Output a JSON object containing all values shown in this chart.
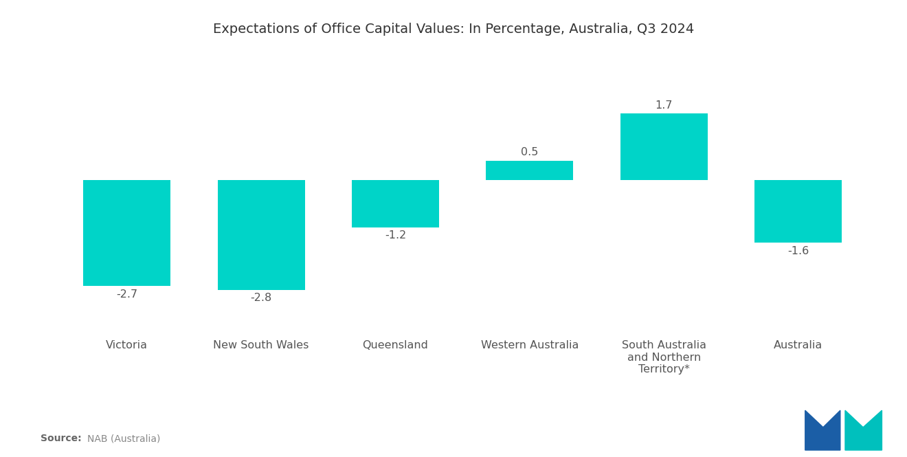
{
  "title": "Expectations of Office Capital Values: In Percentage, Australia, Q3 2024",
  "categories": [
    "Victoria",
    "New South Wales",
    "Queensland",
    "Western Australia",
    "South Australia\nand Northern\nTerritory*",
    "Australia"
  ],
  "values": [
    -2.7,
    -2.8,
    -1.2,
    0.5,
    1.7,
    -1.6
  ],
  "bar_color": "#00D4C8",
  "background_color": "#ffffff",
  "title_fontsize": 14,
  "label_fontsize": 11.5,
  "value_fontsize": 11.5,
  "ylim_min": -3.8,
  "ylim_max": 2.5,
  "bar_width": 0.65,
  "source_bold": "Source:",
  "source_rest": "  NAB (Australia)",
  "logo_blue": "#1B5EA6",
  "logo_teal": "#00C0BD"
}
